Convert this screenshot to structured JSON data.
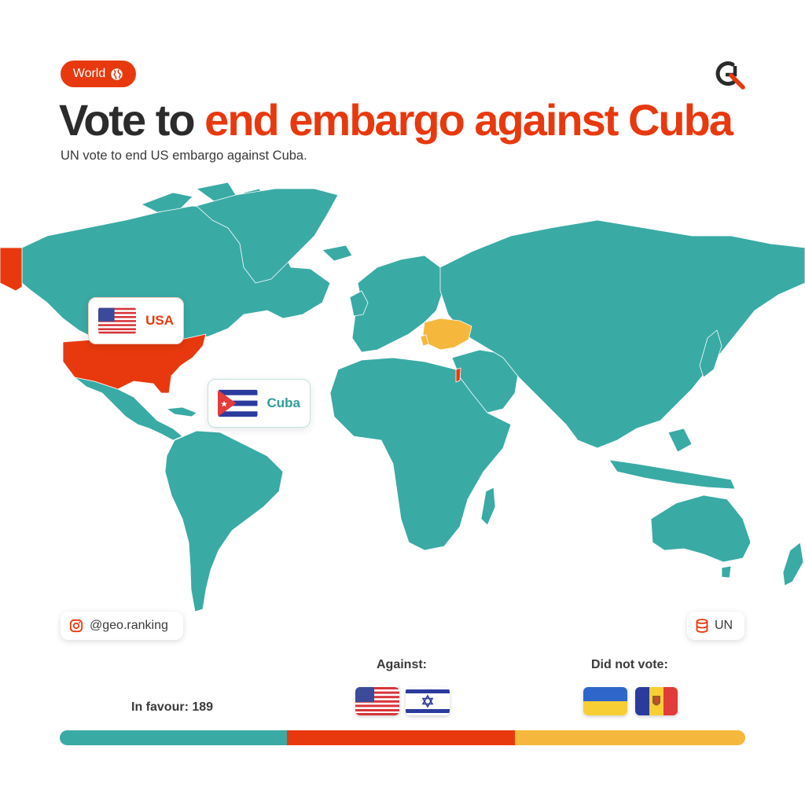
{
  "header": {
    "badge_label": "World",
    "badge_icon": "globe-icon",
    "title_part1": "Vote to",
    "title_part2": "end embargo against Cuba",
    "subtitle": "UN vote to end US embargo against Cuba.",
    "logo_icon": "gr-logo-icon"
  },
  "map": {
    "callouts": [
      {
        "country": "USA",
        "flag": "usa-flag-icon",
        "status": "against"
      },
      {
        "country": "Cuba",
        "flag": "cuba-flag-icon",
        "status": "subject"
      }
    ],
    "legend_colors": {
      "in_favour": "#3aaaa5",
      "against": "#e8390e",
      "did_not_vote": "#f5b83d"
    }
  },
  "footer": {
    "instagram_handle": "@geo.ranking",
    "instagram_icon": "instagram-icon",
    "source_label": "UN",
    "source_icon": "database-icon",
    "in_favour_label": "In favour: 189",
    "against_label": "Against:",
    "against_flags": [
      "usa-flag-icon",
      "israel-flag-icon"
    ],
    "did_not_vote_label": "Did not vote:",
    "did_not_vote_flags": [
      "ukraine-flag-icon",
      "moldova-flag-icon"
    ]
  },
  "bar": {
    "segments": [
      {
        "name": "in-favour",
        "color": "#3aaaa5"
      },
      {
        "name": "against",
        "color": "#e8390e"
      },
      {
        "name": "did-not-vote",
        "color": "#f5b83d"
      }
    ]
  }
}
